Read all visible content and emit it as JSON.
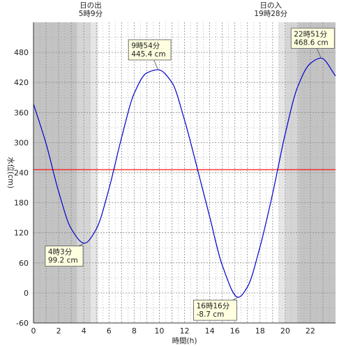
{
  "chart_data": {
    "type": "line",
    "xlabel": "時間(h)",
    "ylabel": "水位(cm)",
    "xlim": [
      0,
      24
    ],
    "ylim": [
      -60,
      540
    ],
    "x_ticks": [
      0,
      2,
      4,
      6,
      8,
      10,
      12,
      14,
      16,
      18,
      20,
      22
    ],
    "y_ticks": [
      -60,
      0,
      60,
      120,
      180,
      240,
      300,
      360,
      420,
      480
    ],
    "grid": true,
    "reference_line": {
      "value": 246,
      "color": "#ff0000"
    },
    "sunrise": {
      "label": "日の出",
      "time_label": "5時9分",
      "hour": 5.15
    },
    "sunset": {
      "label": "日の入",
      "time_label": "19時28分",
      "hour": 19.4667
    },
    "series": [
      {
        "color": "#0000cc",
        "x": [
          0,
          1,
          2,
          3,
          4.05,
          5,
          6,
          7,
          8,
          9,
          9.9,
          11,
          12,
          13,
          14,
          15,
          16.27,
          17,
          18,
          19,
          20,
          21,
          22,
          22.85,
          24
        ],
        "values": [
          377,
          298,
          202,
          128,
          99.2,
          128,
          208,
          310,
          398,
          439,
          445.4,
          420,
          345,
          250,
          152,
          55,
          -8.7,
          12,
          92,
          198,
          317,
          412,
          458,
          468.6,
          433
        ]
      }
    ],
    "annotations": [
      {
        "time": "4時3分",
        "value": "99.2 cm",
        "x": 4.05,
        "y": 99.2
      },
      {
        "time": "9時54分",
        "value": "445.4 cm",
        "x": 9.9,
        "y": 445.4
      },
      {
        "time": "16時16分",
        "value": "-8.7 cm",
        "x": 16.2667,
        "y": -8.7
      },
      {
        "time": "22時51分",
        "value": "468.6 cm",
        "x": 22.85,
        "y": 468.6
      }
    ]
  }
}
